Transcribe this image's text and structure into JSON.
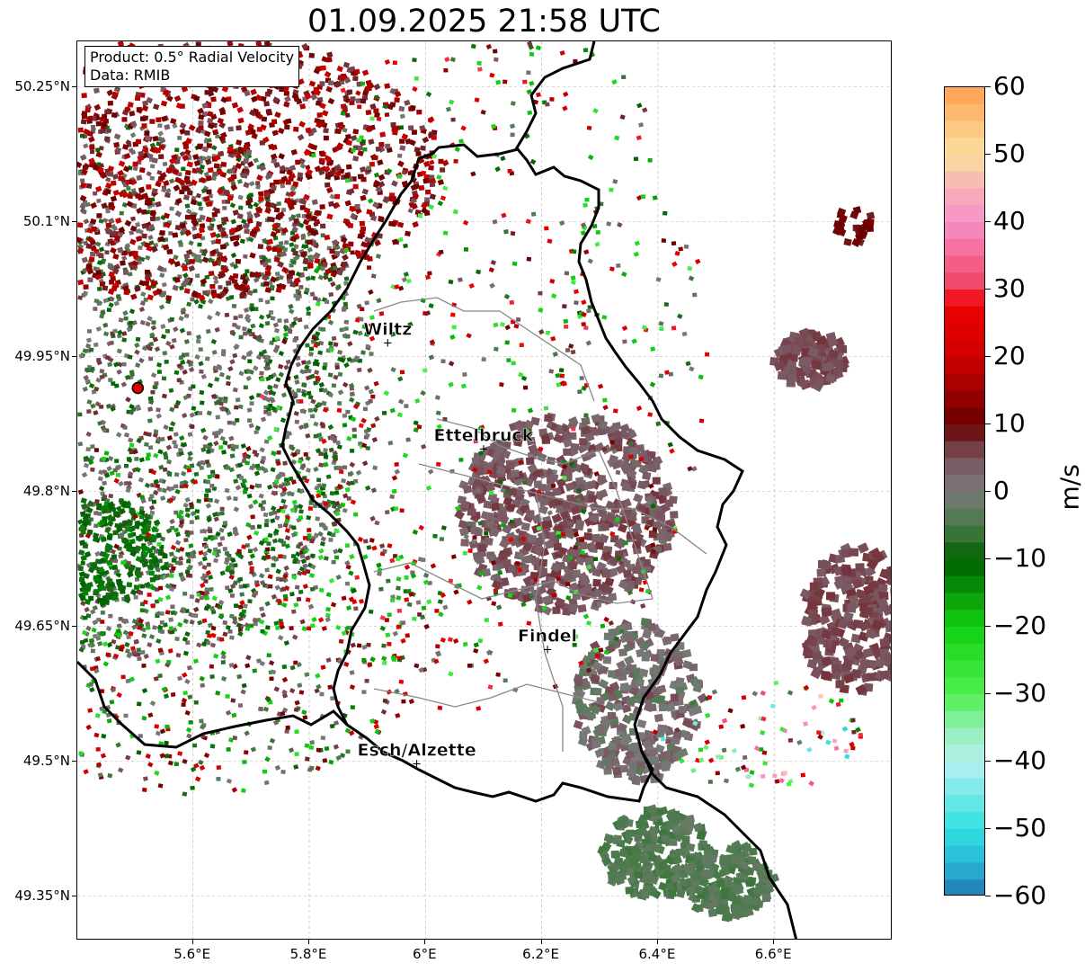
{
  "title": "01.09.2025 21:58 UTC",
  "info_box": {
    "product": "Product: 0.5° Radial Velocity",
    "data": "Data: RMIB"
  },
  "map": {
    "extent": {
      "lon": [
        5.4,
        6.8
      ],
      "lat": [
        49.3,
        50.3
      ]
    },
    "y_ticks": [
      {
        "lat": 50.25,
        "label": "50.25°N"
      },
      {
        "lat": 50.1,
        "label": "50.1°N"
      },
      {
        "lat": 49.95,
        "label": "49.95°N"
      },
      {
        "lat": 49.8,
        "label": "49.8°N"
      },
      {
        "lat": 49.65,
        "label": "49.65°N"
      },
      {
        "lat": 49.5,
        "label": "49.5°N"
      },
      {
        "lat": 49.35,
        "label": "49.35°N"
      }
    ],
    "x_ticks": [
      {
        "lon": 5.6,
        "label": "5.6°E"
      },
      {
        "lon": 5.8,
        "label": "5.8°E"
      },
      {
        "lon": 6.0,
        "label": "6°E"
      },
      {
        "lon": 6.2,
        "label": "6.2°E"
      },
      {
        "lon": 6.4,
        "label": "6.4°E"
      },
      {
        "lon": 6.6,
        "label": "6.6°E"
      }
    ],
    "grid": true,
    "radar_site": {
      "lon": 5.505,
      "lat": 49.915
    },
    "cities": [
      {
        "name": "Wiltz",
        "lon": 5.935,
        "lat": 49.966
      },
      {
        "name": "Ettelbruck",
        "lon": 6.1,
        "lat": 49.848
      },
      {
        "name": "Findel",
        "lon": 6.21,
        "lat": 49.625
      },
      {
        "name": "Esch/Alzette",
        "lon": 5.985,
        "lat": 49.498
      }
    ]
  },
  "colorbar": {
    "unit": "m/s",
    "min": -60,
    "max": 60,
    "ticks": [
      {
        "value": 60,
        "label": "60"
      },
      {
        "value": 50,
        "label": "50"
      },
      {
        "value": 40,
        "label": "40"
      },
      {
        "value": 30,
        "label": "30"
      },
      {
        "value": 20,
        "label": "20"
      },
      {
        "value": 10,
        "label": "10"
      },
      {
        "value": 0,
        "label": "0"
      },
      {
        "value": -10,
        "label": "−10"
      },
      {
        "value": -20,
        "label": "−20"
      },
      {
        "value": -30,
        "label": "−30"
      },
      {
        "value": -40,
        "label": "−40"
      },
      {
        "value": -50,
        "label": "−50"
      },
      {
        "value": -60,
        "label": "−60"
      }
    ],
    "stops": [
      {
        "value": -60,
        "color": "#1f77b4"
      },
      {
        "value": -55,
        "color": "#28b8d8"
      },
      {
        "value": -50,
        "color": "#30e0e0"
      },
      {
        "value": -40,
        "color": "#b8f0f0"
      },
      {
        "value": -35,
        "color": "#90f0b0"
      },
      {
        "value": -30,
        "color": "#50f050"
      },
      {
        "value": -20,
        "color": "#10d010"
      },
      {
        "value": -10,
        "color": "#006000"
      },
      {
        "value": -5,
        "color": "#4a7a4a"
      },
      {
        "value": 0,
        "color": "#7a7a7a"
      },
      {
        "value": 5,
        "color": "#7a5560"
      },
      {
        "value": 10,
        "color": "#6a0000"
      },
      {
        "value": 20,
        "color": "#d00000"
      },
      {
        "value": 28,
        "color": "#f00000"
      },
      {
        "value": 30,
        "color": "#f04060"
      },
      {
        "value": 40,
        "color": "#f890c8"
      },
      {
        "value": 45,
        "color": "#f8b0b8"
      },
      {
        "value": 50,
        "color": "#fce0a0"
      },
      {
        "value": 60,
        "color": "#ffa050"
      }
    ]
  }
}
